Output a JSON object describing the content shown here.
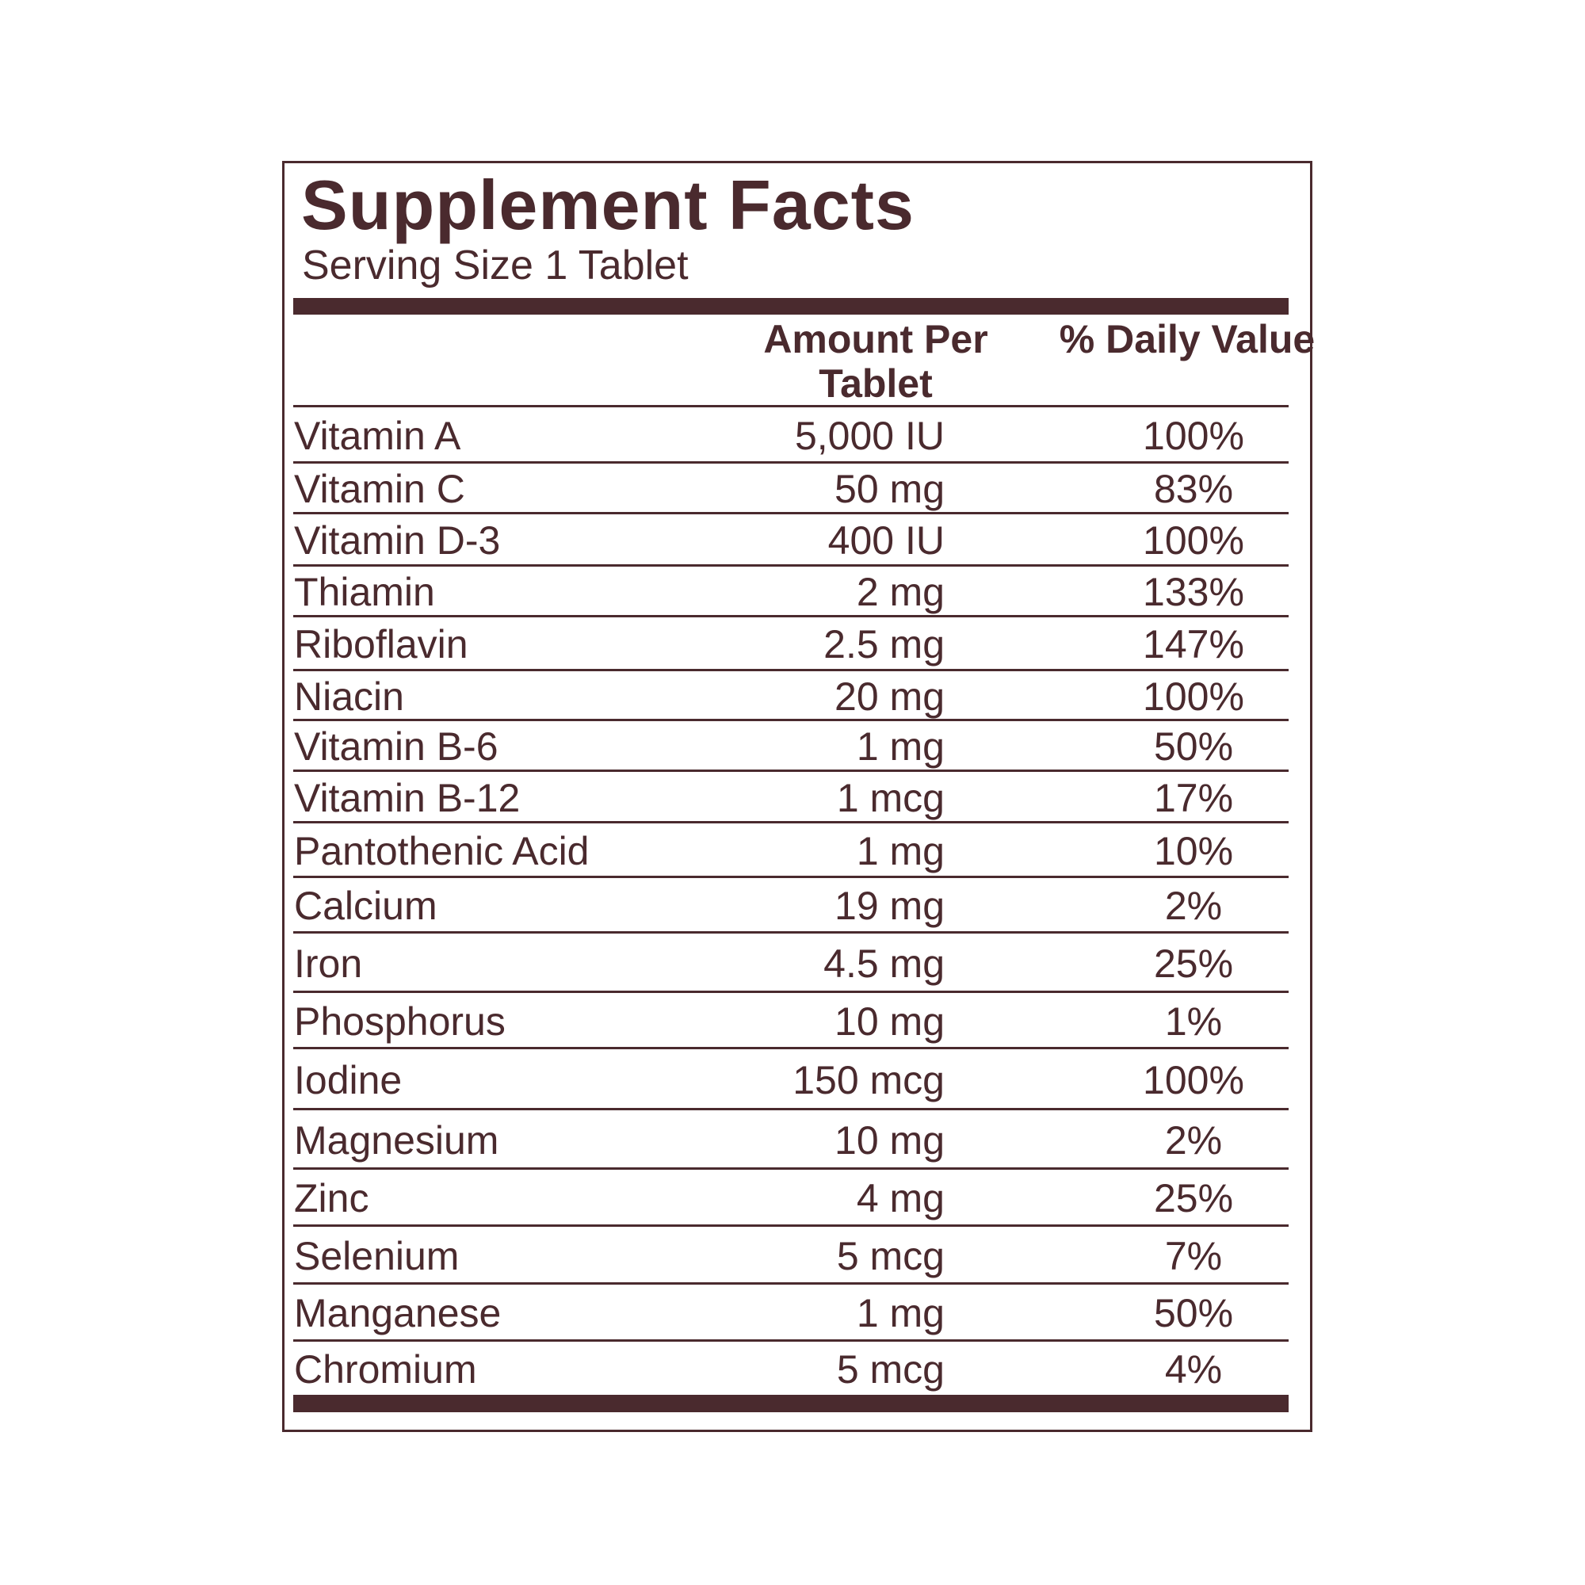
{
  "header": {
    "title": "Supplement Facts",
    "serving_size": "Serving Size 1 Tablet"
  },
  "table": {
    "columns": [
      "",
      "Amount Per Tablet",
      "% Daily Value"
    ],
    "rows": [
      [
        "Vitamin A",
        "5,000 IU",
        "100%"
      ],
      [
        "Vitamin C",
        "50 mg",
        "83%"
      ],
      [
        "Vitamin D-3",
        "400 IU",
        "100%"
      ],
      [
        "Thiamin",
        "2 mg",
        "133%"
      ],
      [
        "Riboflavin",
        "2.5 mg",
        "147%"
      ],
      [
        "Niacin",
        "20 mg",
        "100%"
      ],
      [
        "Vitamin B-6",
        "1 mg",
        "50%"
      ],
      [
        "Vitamin B-12",
        "1 mcg",
        "17%"
      ],
      [
        "Pantothenic Acid",
        "1 mg",
        "10%"
      ],
      [
        "Calcium",
        "19 mg",
        "2%"
      ],
      [
        "Iron",
        "4.5 mg",
        "25%"
      ],
      [
        "Phosphorus",
        "10 mg",
        "1%"
      ],
      [
        "Iodine",
        "150 mcg",
        "100%"
      ],
      [
        "Magnesium",
        "10 mg",
        "2%"
      ],
      [
        "Zinc",
        "4 mg",
        "25%"
      ],
      [
        "Selenium",
        "5 mcg",
        "7%"
      ],
      [
        "Manganese",
        "1 mg",
        "50%"
      ],
      [
        "Chromium",
        "5 mcg",
        "4%"
      ]
    ]
  }
}
